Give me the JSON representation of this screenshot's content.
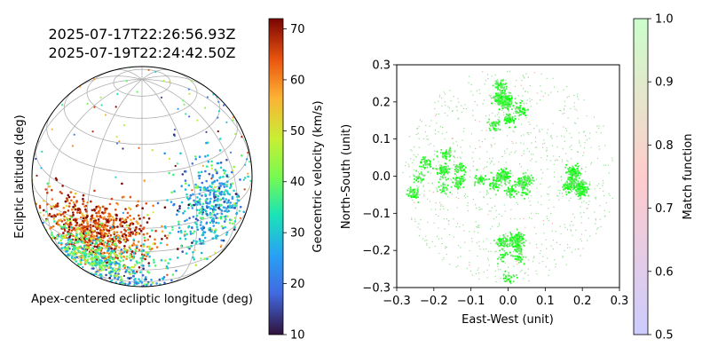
{
  "chart_data": [
    {
      "type": "scatter",
      "title_line1": "2025-07-17T22:26:56.93Z",
      "title_line2": "2025-07-19T22:24:42.50Z",
      "xlabel": "Apex-centered ecliptic longitude (deg)",
      "ylabel": "Ecliptic latitude (deg)",
      "projection": "orthographic",
      "grid": true,
      "colorbar": {
        "label": "Geocentric velocity (km/s)",
        "colormap": "turbo",
        "range": [
          10,
          72
        ],
        "ticks": [
          "10",
          "20",
          "30",
          "40",
          "50",
          "60",
          "70"
        ]
      },
      "clusters": [
        {
          "name": "",
          "lon": -25,
          "lat": -5,
          "velocity": 65,
          "count": 700
        },
        {
          "name": "",
          "lon": -25,
          "lat": -22,
          "velocity": 38,
          "count": 420
        },
        {
          "name": "",
          "lon": 40,
          "lat": 5,
          "velocity": 28,
          "count": 420
        },
        {
          "name": "",
          "lon": -10,
          "lat": -45,
          "velocity": 26,
          "count": 90
        }
      ]
    },
    {
      "type": "scatter",
      "xlabel": "East-West (unit)",
      "ylabel": "North-South (unit)",
      "xlim": [
        -0.3,
        0.3
      ],
      "ylim": [
        -0.3,
        0.3
      ],
      "xticks": [
        "−0.3",
        "−0.2",
        "−0.1",
        "0.0",
        "0.1",
        "0.2",
        "0.3"
      ],
      "yticks": [
        "−0.3",
        "−0.2",
        "−0.1",
        "0.0",
        "0.1",
        "0.2",
        "0.3"
      ],
      "grid": false,
      "colorbar": {
        "label": "Match function",
        "range": [
          0.5,
          1.0
        ],
        "colors": [
          "#ccccff",
          "#ffcccc",
          "#ccffcc"
        ],
        "ticks": [
          "0.5",
          "0.6",
          "0.7",
          "0.8",
          "0.9",
          "1.0"
        ]
      },
      "clusters": [
        {
          "name": "",
          "x": 0.0,
          "y": 0.0,
          "match": 1.0
        },
        {
          "name": "",
          "x": 0.0,
          "y": 0.18,
          "match": 1.0
        },
        {
          "name": "",
          "x": 0.0,
          "y": -0.18,
          "match": 1.0
        },
        {
          "name": "",
          "x": 0.18,
          "y": 0.0,
          "match": 1.0
        },
        {
          "name": "",
          "x": -0.18,
          "y": 0.0,
          "match": 1.0
        }
      ]
    }
  ]
}
